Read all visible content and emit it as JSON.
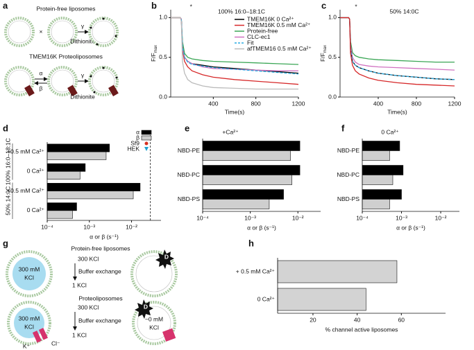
{
  "diagram_a": {
    "panel": "a",
    "top_title": "Protein-free liposomes",
    "times": "×",
    "gamma_top": "γ",
    "dithionite_top": "Dithionite",
    "bottom_title": "TMEM16K Proteoliposomes",
    "alpha": "α",
    "beta": "β",
    "gamma_bottom": "γ",
    "dithionite_bottom": "Dithionite"
  },
  "diagram_g": {
    "panel": "g",
    "top_title": "Protein-free liposomes",
    "top_before": "300 KCl",
    "top_step": "Buffer exchange",
    "top_after": "1 KCl",
    "top_inside": [
      "300 mM",
      "KCl"
    ],
    "top_dye": "D",
    "bottom_title": "Proteoliposomes",
    "bottom_before": "300 KCl",
    "bottom_step": "Buffer exchange",
    "bottom_after": "1 KCl",
    "bottom_inside": [
      "300 mM",
      "KCl"
    ],
    "bottom_inside_after": [
      "~0 mM",
      "KCl"
    ],
    "bottom_dye": "D",
    "cation": "K⁺",
    "anion": "Cl⁻"
  },
  "chart_data": [
    {
      "type": "line",
      "panel": "b",
      "title": "100% 16:0–18:1C",
      "annotation": "*",
      "xlabel": "Time(s)",
      "ylabel": "F/F",
      "ylabel_sub": "max",
      "x": [
        0,
        50,
        90,
        100,
        110,
        130,
        160,
        200,
        300,
        400,
        600,
        800,
        1000,
        1200
      ],
      "xlim": [
        0,
        1200
      ],
      "xticks": [
        400,
        800,
        1200
      ],
      "ylim": [
        0,
        1.1
      ],
      "yticks": [
        {
          "value": 0,
          "label": "0.0"
        },
        0.5,
        {
          "value": 1,
          "label": "1.0"
        }
      ],
      "legend": "upper right",
      "series": [
        {
          "name": "TMEM16K 0 Ca²⁺",
          "color": "#000000",
          "values": [
            1,
            1,
            1,
            0.98,
            0.65,
            0.5,
            0.45,
            0.42,
            0.4,
            0.38,
            0.36,
            0.34,
            0.32,
            0.3
          ]
        },
        {
          "name": "TMEM16K 0.5 mM Ca²⁺",
          "color": "#d62728",
          "values": [
            1,
            1,
            1,
            0.98,
            0.6,
            0.45,
            0.38,
            0.33,
            0.28,
            0.25,
            0.22,
            0.2,
            0.18,
            0.16
          ]
        },
        {
          "name": "Protein-free",
          "color": "#3aa655",
          "values": [
            1,
            1,
            1,
            0.98,
            0.7,
            0.55,
            0.5,
            0.48,
            0.46,
            0.45,
            0.44,
            0.43,
            0.42,
            0.41
          ]
        },
        {
          "name": "CLC-ec1",
          "color": "#d070c0",
          "values": [
            1,
            1,
            1,
            0.98,
            0.62,
            0.5,
            0.45,
            0.42,
            0.38,
            0.36,
            0.35,
            0.34,
            0.33,
            0.33
          ]
        },
        {
          "name": "Fit",
          "color": "#29abe2",
          "dash": true,
          "values": [
            null,
            null,
            null,
            0.98,
            0.64,
            0.5,
            0.44,
            0.41,
            0.39,
            0.37,
            0.35,
            0.33,
            0.31,
            0.29
          ]
        },
        {
          "name": "afTMEM16 0.5 mM Ca²⁺",
          "color": "#bbbbbb",
          "values": [
            1,
            1,
            1,
            0.95,
            0.45,
            0.3,
            0.22,
            0.18,
            0.14,
            0.12,
            0.11,
            0.1,
            0.1,
            0.1
          ]
        }
      ]
    },
    {
      "type": "line",
      "panel": "c",
      "title": "50% 14:0C",
      "annotation": "*",
      "xlabel": "Time(s)",
      "ylabel": "F/F",
      "ylabel_sub": "max",
      "x": [
        0,
        50,
        90,
        100,
        110,
        130,
        160,
        200,
        300,
        400,
        600,
        800,
        1000,
        1200
      ],
      "xlim": [
        0,
        1200
      ],
      "xticks": [
        400,
        800,
        1200
      ],
      "ylim": [
        0,
        1.1
      ],
      "yticks": [
        {
          "value": 0,
          "label": "0.0"
        },
        0.5,
        {
          "value": 1,
          "label": "1.0"
        }
      ],
      "series": [
        {
          "color": "#3aa655",
          "values": [
            1,
            1,
            1,
            0.98,
            0.7,
            0.56,
            0.52,
            0.5,
            0.48,
            0.47,
            0.46,
            0.45,
            0.44,
            0.44
          ]
        },
        {
          "color": "#d070c0",
          "values": [
            1,
            1,
            1,
            0.98,
            0.65,
            0.5,
            0.44,
            0.41,
            0.39,
            0.38,
            0.37,
            0.36,
            0.35,
            0.34
          ]
        },
        {
          "color": "#000000",
          "values": [
            1,
            1,
            1,
            0.98,
            0.6,
            0.45,
            0.4,
            0.37,
            0.33,
            0.3,
            0.27,
            0.25,
            0.23,
            0.22
          ]
        },
        {
          "color": "#29abe2",
          "dash": true,
          "values": [
            null,
            null,
            null,
            0.98,
            0.6,
            0.45,
            0.4,
            0.37,
            0.33,
            0.3,
            0.27,
            0.25,
            0.23,
            0.22
          ]
        },
        {
          "color": "#d62728",
          "values": [
            1,
            1,
            1,
            0.98,
            0.55,
            0.4,
            0.33,
            0.29,
            0.24,
            0.21,
            0.18,
            0.16,
            0.15,
            0.14
          ]
        }
      ]
    },
    {
      "type": "bar",
      "orientation": "horizontal",
      "panel": "d",
      "xlabel": "α or β (s⁻¹)",
      "xscale": "log",
      "groups": [
        {
          "label": "100% 16:0–18:1C",
          "categories": [
            "+0.5 mM Ca²⁺",
            "0 Ca²⁺"
          ]
        },
        {
          "label": "50% 14:0C",
          "categories": [
            "+0.5 mM Ca²⁺",
            "0 Ca²⁺"
          ]
        }
      ],
      "xlim": [
        0.0001,
        0.05
      ],
      "xticks": [
        {
          "value": 0.0001,
          "label": "10⁻⁴"
        },
        {
          "value": 0.001,
          "label": "10⁻³"
        },
        {
          "value": 0.01,
          "label": "10⁻²"
        }
      ],
      "vline": 0.028,
      "legend": "upper right",
      "series": [
        {
          "name": "α",
          "color": "#000000",
          "values": [
            0.003,
            0.0008,
            0.016,
            0.0005
          ]
        },
        {
          "name": "β",
          "color": "#cfcfcf",
          "values": [
            0.0025,
            0.0006,
            0.011,
            0.0004
          ]
        }
      ],
      "point_legend": [
        {
          "name": "Sf9",
          "color": "#d7301f",
          "marker": "circle"
        },
        {
          "name": "HEK",
          "color": "#1fa0d0",
          "marker": "triangle"
        }
      ]
    },
    {
      "type": "bar",
      "orientation": "horizontal",
      "panel": "e",
      "title": "+Ca²⁺",
      "xlabel": "α or β (s⁻¹)",
      "xscale": "log",
      "categories": [
        "NBD-PE",
        "NBD-PC",
        "NBD-PS"
      ],
      "xlim": [
        0.0001,
        0.03
      ],
      "xticks": [
        {
          "value": 0.0001,
          "label": "10⁻⁴"
        },
        {
          "value": 0.001,
          "label": "10⁻³"
        },
        {
          "value": 0.01,
          "label": "10⁻²"
        }
      ],
      "series": [
        {
          "name": "α",
          "color": "#000000",
          "values": [
            0.011,
            0.011,
            0.005
          ]
        },
        {
          "name": "β",
          "color": "#cfcfcf",
          "values": [
            0.007,
            0.0075,
            0.0025
          ]
        }
      ]
    },
    {
      "type": "bar",
      "orientation": "horizontal",
      "panel": "f",
      "title": "0 Ca²⁺",
      "xlabel": "α or β (s⁻¹)",
      "xscale": "log",
      "categories": [
        "NBD-PE",
        "NBD-PC",
        "NBD-PS"
      ],
      "xlim": [
        0.0001,
        0.03
      ],
      "xticks": [
        {
          "value": 0.0001,
          "label": "10⁻⁴"
        },
        {
          "value": 0.001,
          "label": "10⁻³"
        },
        {
          "value": 0.01,
          "label": "10⁻²"
        }
      ],
      "series": [
        {
          "name": "α",
          "color": "#000000",
          "values": [
            0.0009,
            0.0011,
            0.001
          ]
        },
        {
          "name": "β",
          "color": "#cfcfcf",
          "values": [
            0.0005,
            0.0006,
            0.0005
          ]
        }
      ]
    },
    {
      "type": "bar",
      "orientation": "horizontal",
      "panel": "h",
      "xlabel": "% channel active liposomes",
      "categories": [
        "+ 0.5 mM Ca²⁺",
        "0 Ca²⁺"
      ],
      "xlim": [
        4,
        80
      ],
      "xticks": [
        20,
        40,
        60
      ],
      "series": [
        {
          "color": "#d3d3d3",
          "values": [
            58,
            44
          ]
        }
      ]
    }
  ]
}
